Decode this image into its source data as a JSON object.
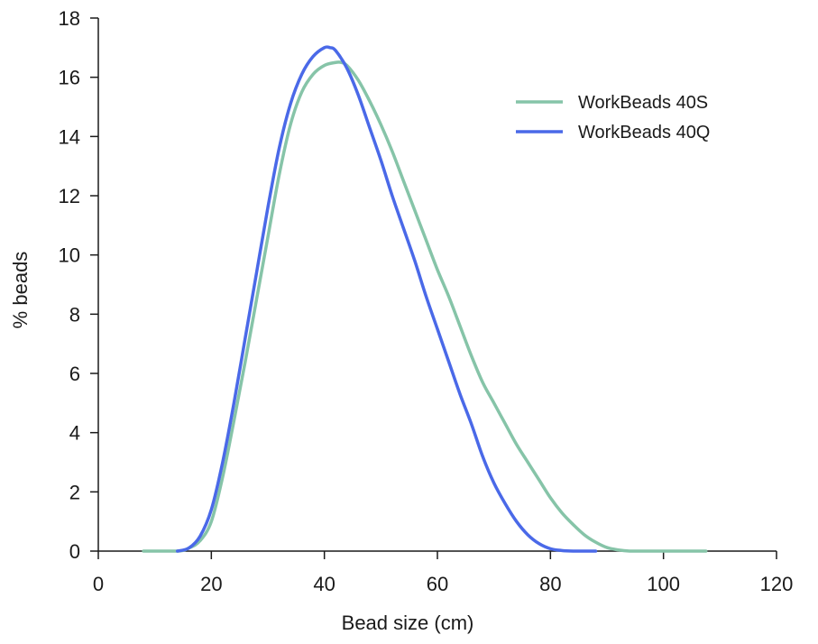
{
  "chart_data": {
    "type": "line",
    "title": "",
    "xlabel": "Bead size (cm)",
    "ylabel": "% beads",
    "xlim": [
      0,
      120
    ],
    "ylim": [
      0,
      18
    ],
    "xticks": [
      0,
      20,
      40,
      60,
      80,
      100,
      120
    ],
    "yticks": [
      0,
      2,
      4,
      6,
      8,
      10,
      12,
      14,
      16,
      18
    ],
    "grid": false,
    "legend_position": "top-right",
    "series": [
      {
        "name": "WorkBeads 40S",
        "color": "#86c4a8",
        "x": [
          8,
          14,
          16,
          18,
          20,
          22,
          24,
          26,
          28,
          30,
          32,
          34,
          36,
          38,
          40,
          42,
          43,
          44,
          46,
          48,
          50,
          52,
          54,
          56,
          58,
          60,
          62,
          64,
          66,
          68,
          70,
          72,
          74,
          76,
          78,
          80,
          82,
          84,
          86,
          88,
          90,
          92,
          94,
          96,
          100,
          107.5
        ],
        "y": [
          0,
          0,
          0.1,
          0.35,
          1.0,
          2.5,
          4.4,
          6.4,
          8.5,
          10.6,
          12.7,
          14.4,
          15.5,
          16.1,
          16.4,
          16.5,
          16.5,
          16.4,
          15.9,
          15.2,
          14.4,
          13.5,
          12.5,
          11.5,
          10.5,
          9.5,
          8.6,
          7.6,
          6.6,
          5.7,
          5.0,
          4.3,
          3.6,
          3.0,
          2.4,
          1.8,
          1.3,
          0.9,
          0.55,
          0.3,
          0.12,
          0.04,
          0,
          0,
          0,
          0
        ]
      },
      {
        "name": "WorkBeads 40Q",
        "color": "#4a69e8",
        "x": [
          14,
          16,
          18,
          20,
          22,
          24,
          26,
          28,
          30,
          32,
          34,
          36,
          38,
          40,
          41,
          42,
          44,
          46,
          48,
          50,
          52,
          54,
          56,
          58,
          60,
          62,
          64,
          66,
          68,
          70,
          72,
          74,
          76,
          78,
          80,
          82,
          84,
          86,
          88
        ],
        "y": [
          0,
          0.1,
          0.5,
          1.4,
          3.0,
          5.0,
          7.2,
          9.4,
          11.6,
          13.6,
          15.1,
          16.1,
          16.7,
          17.0,
          17.0,
          16.9,
          16.3,
          15.4,
          14.3,
          13.2,
          12.0,
          10.9,
          9.8,
          8.6,
          7.5,
          6.4,
          5.3,
          4.3,
          3.2,
          2.3,
          1.6,
          1.0,
          0.55,
          0.25,
          0.08,
          0.02,
          0,
          0,
          0
        ]
      }
    ]
  }
}
